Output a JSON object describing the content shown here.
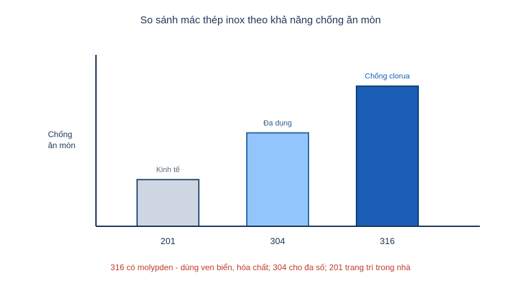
{
  "chart_data": {
    "type": "bar",
    "title": "So sánh mác thép inox theo khả năng chống ăn mòn",
    "ylabel_lines": [
      "Chống",
      "ăn mòn"
    ],
    "xlabel": "",
    "categories": [
      "201",
      "304",
      "316"
    ],
    "values": [
      1,
      2,
      3
    ],
    "bar_labels": [
      "Kinh tế",
      "Đa dụng",
      "Chống clorua"
    ],
    "ylim": [
      0,
      3.67
    ],
    "grid": false,
    "legend": "none",
    "footnote": "316 có molypden - dùng ven biển, hóa chất; 304 cho đa số; 201 trang trí trong nhà",
    "colors": {
      "bar_fills": [
        "#cdd6e2",
        "#93c5fd",
        "#1a5eb5"
      ],
      "bar_strokes": [
        "#2f5478",
        "#2f6aa8",
        "#13407a"
      ],
      "label_colors": [
        "#5b6b7d",
        "#2c5b8c",
        "#1a5eb5"
      ],
      "axis": "#1c3557",
      "title": "#1c3557",
      "footnote": "#c0392b"
    }
  }
}
